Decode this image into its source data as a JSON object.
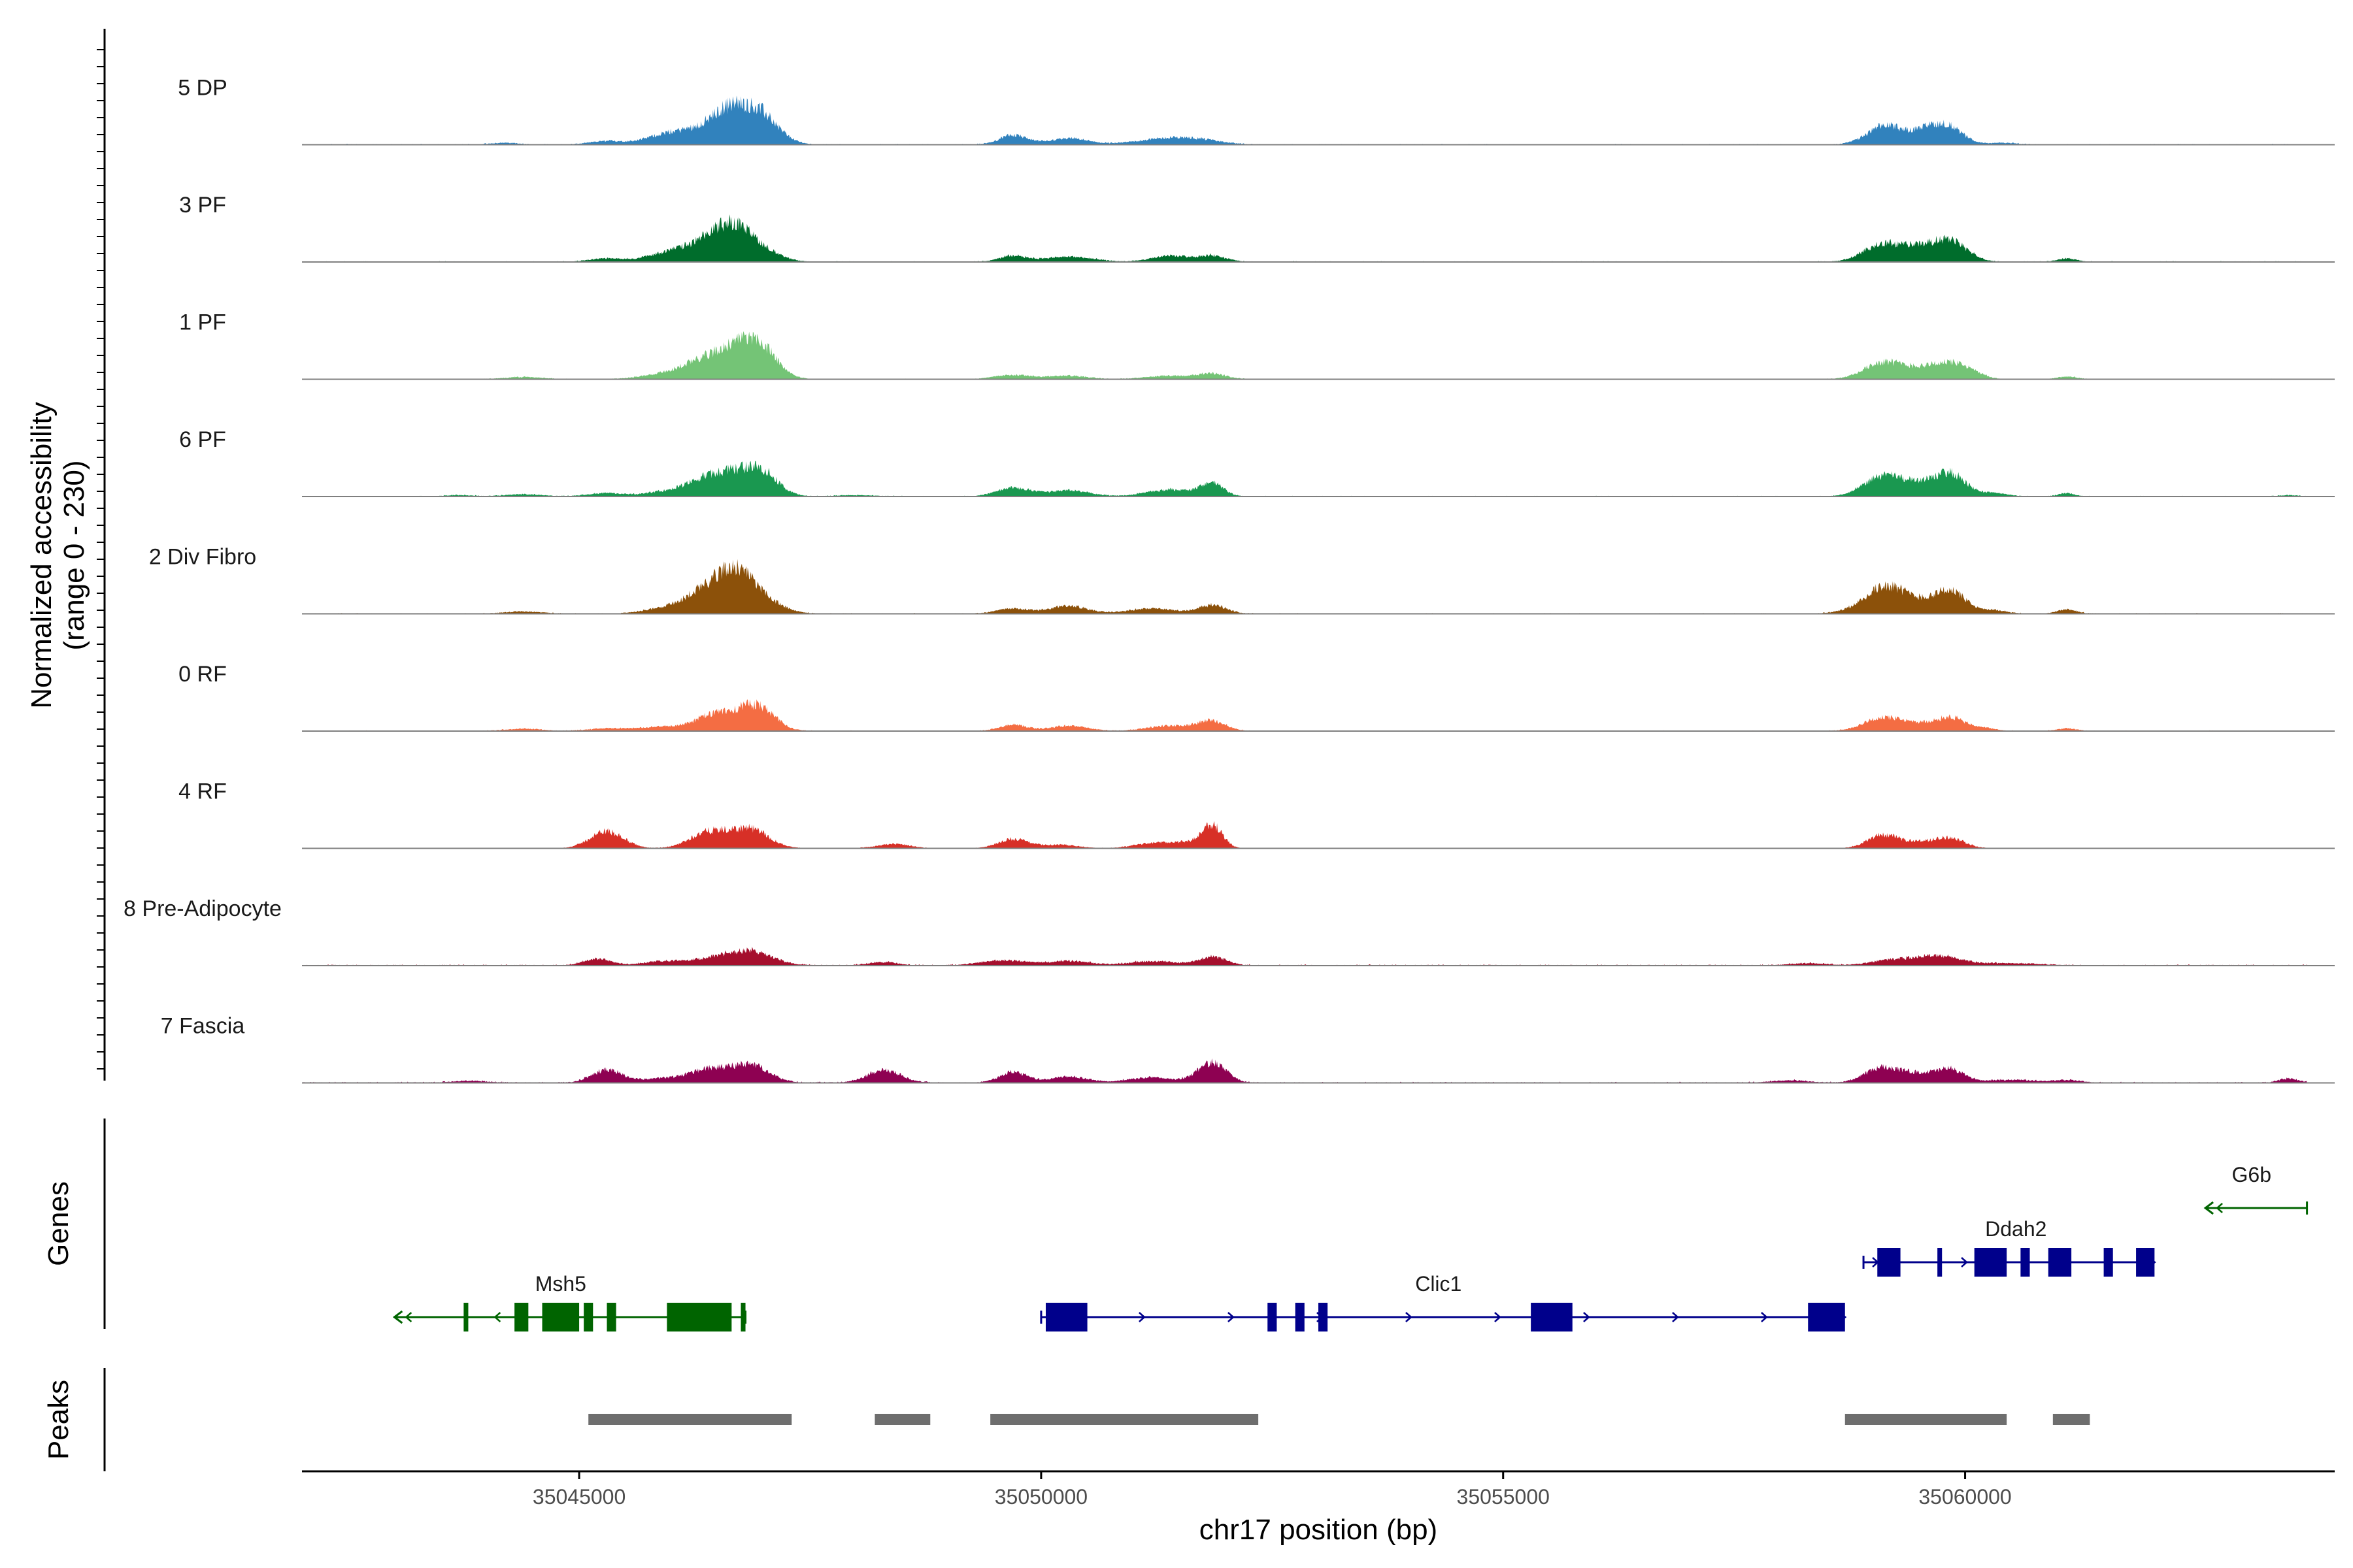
{
  "chart_data": {
    "type": "area",
    "title": "",
    "ylabel_line1": "Normalized accessibility",
    "ylabel_line2": "(range 0 - 230)",
    "xlabel": "chr17 position (bp)",
    "xlim": [
      35042000,
      35064000
    ],
    "ylim": [
      0,
      230
    ],
    "x_ticks": [
      35045000,
      35050000,
      35055000,
      35060000
    ],
    "x_tick_labels": [
      "35045000",
      "35050000",
      "35055000",
      "35060000"
    ],
    "colors": {
      "baseline": "#7f7f7f",
      "peak_bar": "#6e6e6e",
      "axis": "#000000",
      "gene_forward": "#00008b",
      "gene_reverse": "#006400"
    },
    "tracks": [
      {
        "name": "5 DP",
        "color": "#3182bd",
        "peaks": [
          [
            35044200,
            4,
            150
          ],
          [
            35045300,
            8,
            180
          ],
          [
            35045900,
            18,
            220
          ],
          [
            35046350,
            35,
            260
          ],
          [
            35046800,
            55,
            240
          ],
          [
            35046620,
            28,
            160
          ],
          [
            35047000,
            35,
            180
          ],
          [
            35049700,
            22,
            150
          ],
          [
            35050300,
            15,
            200
          ],
          [
            35051300,
            12,
            300
          ],
          [
            35051700,
            10,
            250
          ],
          [
            35059150,
            45,
            200
          ],
          [
            35059600,
            30,
            160
          ],
          [
            35059830,
            35,
            160
          ],
          [
            35060400,
            4,
            150
          ]
        ],
        "noise": 2.5
      },
      {
        "name": "3 PF",
        "color": "#006d2c",
        "peaks": [
          [
            35045300,
            8,
            180
          ],
          [
            35045900,
            14,
            220
          ],
          [
            35046350,
            40,
            260
          ],
          [
            35046800,
            55,
            240
          ],
          [
            35046600,
            30,
            160
          ],
          [
            35049700,
            14,
            150
          ],
          [
            35050300,
            12,
            250
          ],
          [
            35051400,
            14,
            200
          ],
          [
            35051850,
            14,
            150
          ],
          [
            35059100,
            40,
            200
          ],
          [
            35059500,
            30,
            200
          ],
          [
            35059850,
            45,
            180
          ],
          [
            35061100,
            8,
            100
          ]
        ],
        "noise": 2.5
      },
      {
        "name": "1 PF",
        "color": "#74c476",
        "peaks": [
          [
            35044400,
            5,
            200
          ],
          [
            35045900,
            10,
            240
          ],
          [
            35046400,
            45,
            260
          ],
          [
            35046800,
            65,
            230
          ],
          [
            35047000,
            35,
            160
          ],
          [
            35049700,
            10,
            200
          ],
          [
            35050300,
            8,
            200
          ],
          [
            35051400,
            8,
            250
          ],
          [
            35051850,
            12,
            150
          ],
          [
            35059100,
            38,
            200
          ],
          [
            35059500,
            22,
            200
          ],
          [
            35059850,
            35,
            180
          ],
          [
            35060100,
            8,
            120
          ],
          [
            35061100,
            6,
            100
          ]
        ],
        "noise": 1.8
      },
      {
        "name": "6 PF",
        "color": "#1a9850",
        "peaks": [
          [
            35043700,
            3,
            150
          ],
          [
            35044400,
            5,
            200
          ],
          [
            35045300,
            8,
            200
          ],
          [
            35045900,
            8,
            200
          ],
          [
            35046400,
            40,
            250
          ],
          [
            35046800,
            45,
            240
          ],
          [
            35047000,
            30,
            160
          ],
          [
            35048000,
            3,
            200
          ],
          [
            35049700,
            20,
            180
          ],
          [
            35050300,
            14,
            220
          ],
          [
            35051400,
            16,
            250
          ],
          [
            35051850,
            30,
            120
          ],
          [
            35059100,
            45,
            200
          ],
          [
            35059500,
            28,
            200
          ],
          [
            35059850,
            50,
            160
          ],
          [
            35060300,
            8,
            150
          ],
          [
            35061100,
            8,
            80
          ],
          [
            35063500,
            3,
            100
          ]
        ],
        "noise": 2.2
      },
      {
        "name": "2 Div Fibro",
        "color": "#8c510a",
        "peaks": [
          [
            35044400,
            5,
            200
          ],
          [
            35045900,
            10,
            220
          ],
          [
            35046400,
            55,
            250
          ],
          [
            35046850,
            55,
            240
          ],
          [
            35046650,
            40,
            160
          ],
          [
            35049700,
            12,
            180
          ],
          [
            35050300,
            18,
            200
          ],
          [
            35051200,
            12,
            250
          ],
          [
            35051850,
            20,
            150
          ],
          [
            35058900,
            15,
            200
          ],
          [
            35059150,
            55,
            180
          ],
          [
            35059500,
            28,
            200
          ],
          [
            35059850,
            50,
            160
          ],
          [
            35060300,
            8,
            150
          ],
          [
            35061100,
            10,
            100
          ]
        ],
        "noise": 2.3
      },
      {
        "name": "0 RF",
        "color": "#f46d43",
        "peaks": [
          [
            35044400,
            5,
            200
          ],
          [
            35045300,
            6,
            200
          ],
          [
            35045900,
            10,
            240
          ],
          [
            35046450,
            35,
            200
          ],
          [
            35046850,
            45,
            200
          ],
          [
            35047000,
            20,
            160
          ],
          [
            35049700,
            14,
            150
          ],
          [
            35050300,
            12,
            200
          ],
          [
            35051400,
            12,
            250
          ],
          [
            35051850,
            22,
            150
          ],
          [
            35059100,
            30,
            200
          ],
          [
            35059500,
            15,
            200
          ],
          [
            35059850,
            30,
            150
          ],
          [
            35060200,
            7,
            120
          ],
          [
            35061100,
            6,
            100
          ]
        ],
        "noise": 2.0
      },
      {
        "name": "4 RF",
        "color": "#d73027",
        "peaks": [
          [
            35045300,
            40,
            180
          ],
          [
            35046400,
            38,
            200
          ],
          [
            35046850,
            45,
            200
          ],
          [
            35048400,
            10,
            180
          ],
          [
            35049700,
            22,
            160
          ],
          [
            35050200,
            8,
            200
          ],
          [
            35051200,
            12,
            200
          ],
          [
            35051550,
            12,
            150
          ],
          [
            35051850,
            55,
            110
          ],
          [
            35059100,
            30,
            160
          ],
          [
            35059500,
            15,
            200
          ],
          [
            35059850,
            22,
            150
          ]
        ],
        "noise": 1.2
      },
      {
        "name": "8 Pre-Adipocyte",
        "color": "#a50f2d",
        "peaks": [
          [
            35045200,
            15,
            150
          ],
          [
            35045900,
            10,
            200
          ],
          [
            35046400,
            15,
            200
          ],
          [
            35046850,
            35,
            230
          ],
          [
            35048300,
            8,
            150
          ],
          [
            35049600,
            12,
            250
          ],
          [
            35050300,
            10,
            220
          ],
          [
            35051200,
            10,
            250
          ],
          [
            35051850,
            20,
            150
          ],
          [
            35058300,
            5,
            200
          ],
          [
            35059200,
            12,
            220
          ],
          [
            35059700,
            22,
            250
          ],
          [
            35060500,
            5,
            300
          ]
        ],
        "noise": 3.5
      },
      {
        "name": "7 Fascia",
        "color": "#8e0152",
        "peaks": [
          [
            35043800,
            4,
            200
          ],
          [
            35045300,
            30,
            160
          ],
          [
            35045900,
            10,
            250
          ],
          [
            35046400,
            30,
            200
          ],
          [
            35046850,
            42,
            200
          ],
          [
            35048300,
            30,
            180
          ],
          [
            35049700,
            25,
            150
          ],
          [
            35050300,
            14,
            200
          ],
          [
            35051200,
            12,
            250
          ],
          [
            35051850,
            48,
            150
          ],
          [
            35058100,
            5,
            200
          ],
          [
            35059100,
            35,
            180
          ],
          [
            35059500,
            20,
            200
          ],
          [
            35059850,
            28,
            150
          ],
          [
            35060500,
            7,
            250
          ],
          [
            35061100,
            6,
            150
          ],
          [
            35063500,
            10,
            100
          ]
        ],
        "noise": 3.2
      }
    ],
    "genes_label": "Genes",
    "genes": [
      {
        "name": "Msh5",
        "strand": "-",
        "color": "#006400",
        "start": 35043000,
        "end": 35046800,
        "row": 2,
        "label_pos": 35044800,
        "exons": [
          [
            35043750,
            35043800
          ],
          [
            35044300,
            35044450
          ],
          [
            35044600,
            35045000
          ],
          [
            35045050,
            35045150
          ],
          [
            35045300,
            35045400
          ],
          [
            35045950,
            35046650
          ],
          [
            35046750,
            35046800
          ]
        ]
      },
      {
        "name": "Clic1",
        "strand": "+",
        "color": "#00008b",
        "start": 35050000,
        "end": 35058700,
        "row": 2,
        "label_pos": 35054300,
        "exons": [
          [
            35050050,
            35050500
          ],
          [
            35052450,
            35052550
          ],
          [
            35052750,
            35052850
          ],
          [
            35053000,
            35053100
          ],
          [
            35055300,
            35055750
          ],
          [
            35058300,
            35058700
          ]
        ]
      },
      {
        "name": "Ddah2",
        "strand": "+",
        "color": "#00008b",
        "start": 35058900,
        "end": 35062050,
        "row": 1,
        "label_pos": 35060550,
        "exons": [
          [
            35059050,
            35059300
          ],
          [
            35059700,
            35059750
          ],
          [
            35060100,
            35060450
          ],
          [
            35060600,
            35060700
          ],
          [
            35060900,
            35061150
          ],
          [
            35061500,
            35061600
          ],
          [
            35061850,
            35062050
          ]
        ]
      },
      {
        "name": "G6b",
        "strand": "-",
        "color": "#006400",
        "start": 35062600,
        "end": 35063700,
        "row": 0,
        "label_pos": 35063100,
        "exons": []
      }
    ],
    "peaks_label": "Peaks",
    "peak_regions": [
      [
        35045100,
        35047300
      ],
      [
        35048200,
        35048800
      ],
      [
        35049450,
        35052350
      ],
      [
        35058700,
        35060450
      ],
      [
        35060950,
        35061350
      ]
    ]
  }
}
